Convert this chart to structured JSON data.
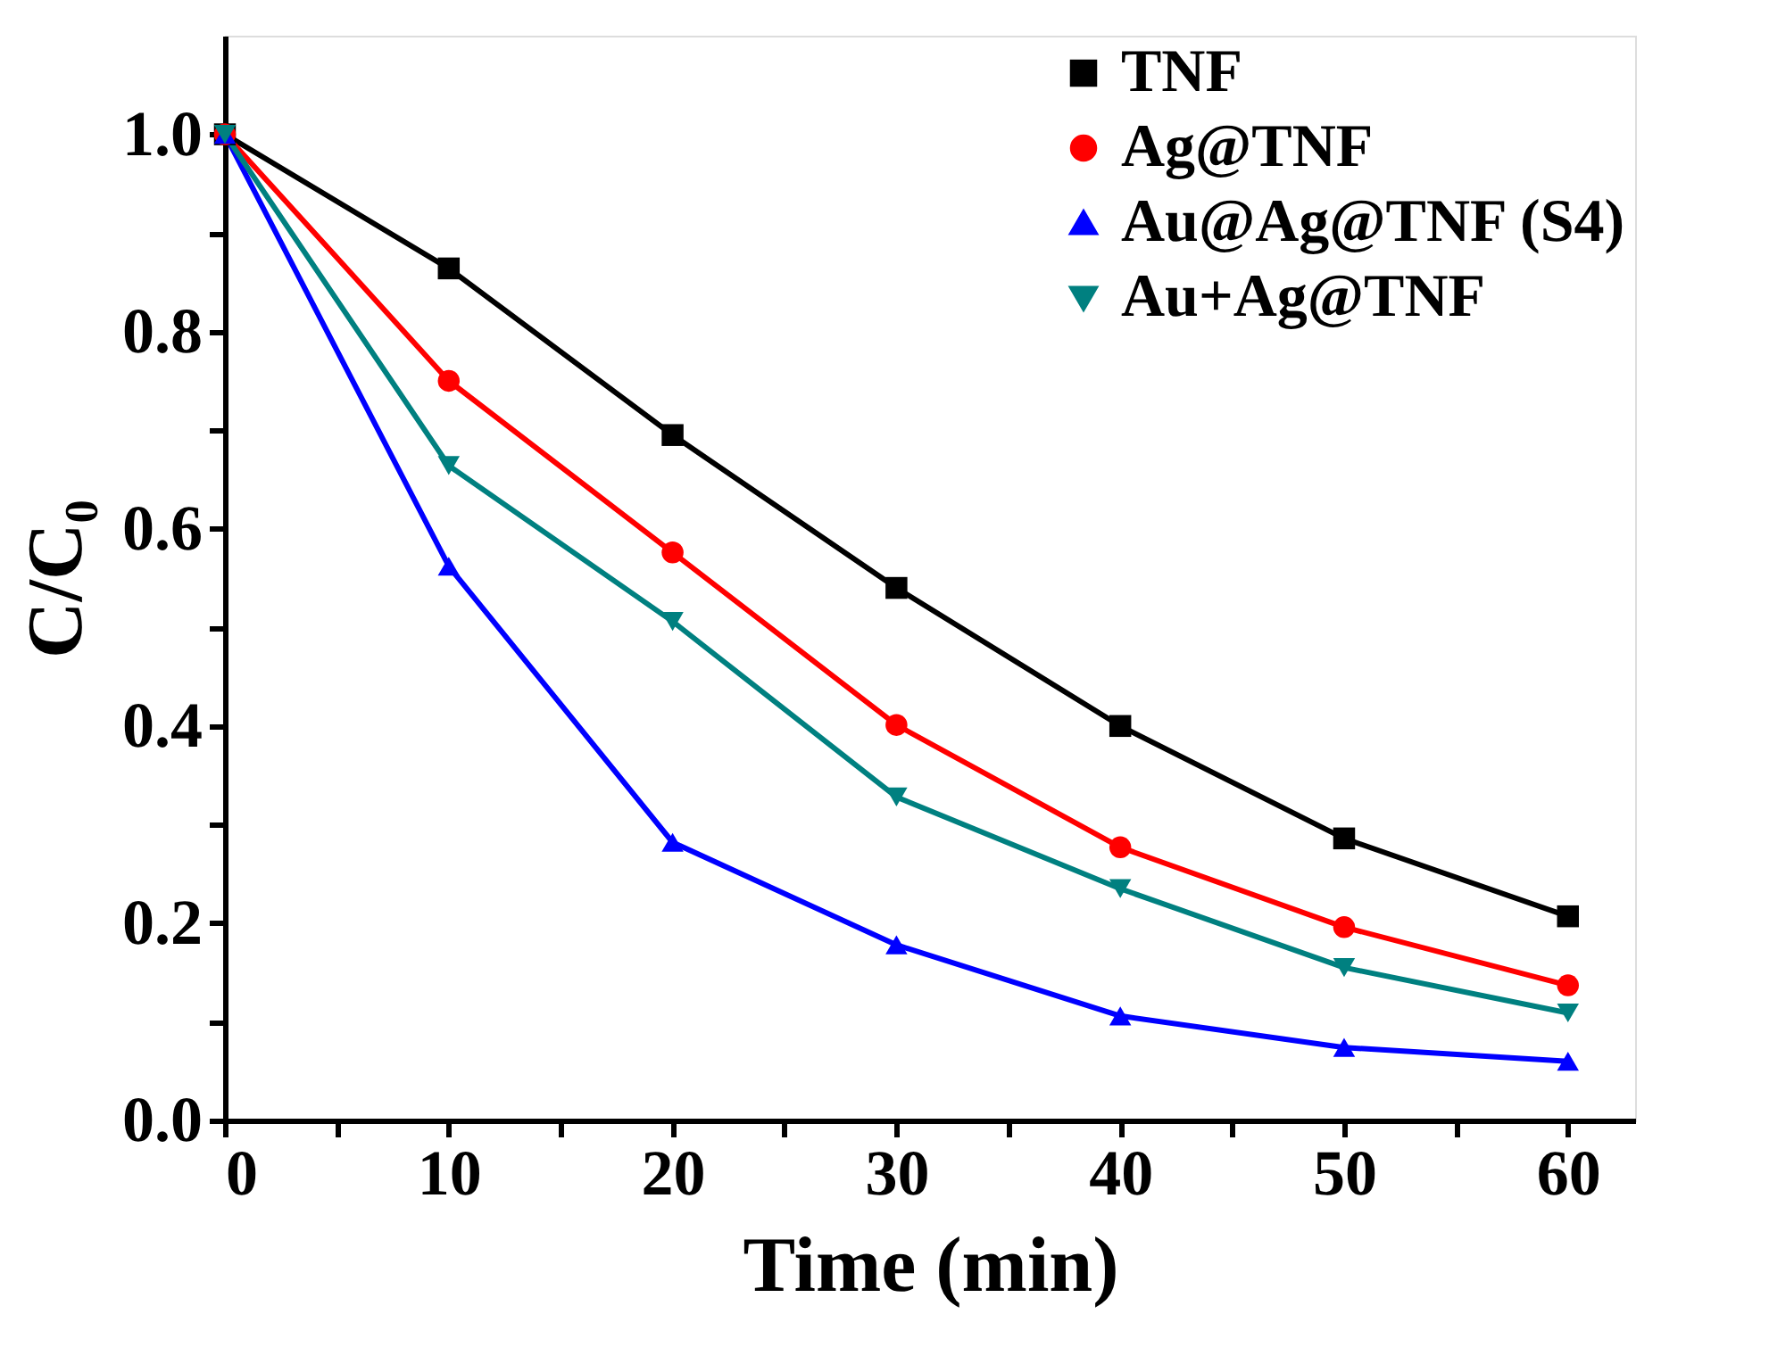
{
  "chart_data": {
    "type": "line",
    "xlabel": "Time (min)",
    "ylabel": "C/C₀",
    "x": [
      0,
      10,
      20,
      30,
      40,
      50,
      60
    ],
    "series": [
      {
        "name": "TNF",
        "color": "#000000",
        "marker": "square",
        "values": [
          1.0,
          0.864,
          0.695,
          0.54,
          0.4,
          0.286,
          0.207
        ]
      },
      {
        "name": "Ag@TNF",
        "color": "#ff0000",
        "marker": "circle",
        "values": [
          1.0,
          0.75,
          0.576,
          0.401,
          0.277,
          0.196,
          0.137
        ]
      },
      {
        "name": "Au@Ag@TNF (S4)",
        "color": "#0000ff",
        "marker": "triangle",
        "values": [
          1.0,
          0.562,
          0.282,
          0.178,
          0.106,
          0.074,
          0.06
        ]
      },
      {
        "name": "Au+Ag@TNF",
        "color": "#008080",
        "marker": "triangle-down",
        "values": [
          1.0,
          0.664,
          0.506,
          0.328,
          0.235,
          0.155,
          0.109
        ]
      }
    ],
    "xlim": [
      0,
      63
    ],
    "ylim": [
      0,
      1.1
    ],
    "xticks": [
      0,
      {
        "value": 5,
        "label": null
      },
      10,
      {
        "value": 15,
        "label": null
      },
      20,
      {
        "value": 25,
        "label": null
      },
      30,
      {
        "value": 35,
        "label": null
      },
      40,
      {
        "value": 45,
        "label": null
      },
      50,
      {
        "value": 55,
        "label": null
      },
      60
    ],
    "yticks": [
      {
        "value": 0,
        "label": "0.0"
      },
      {
        "value": 0.1,
        "label": null
      },
      0.2,
      {
        "value": 0.3,
        "label": null
      },
      0.4,
      {
        "value": 0.5,
        "label": null
      },
      0.6,
      {
        "value": 0.7,
        "label": null
      },
      0.8,
      {
        "value": 0.9,
        "label": null
      },
      {
        "value": 1.0,
        "label": "1.0"
      }
    ],
    "grid": false,
    "legend": "top right",
    "line_style": "solid"
  }
}
